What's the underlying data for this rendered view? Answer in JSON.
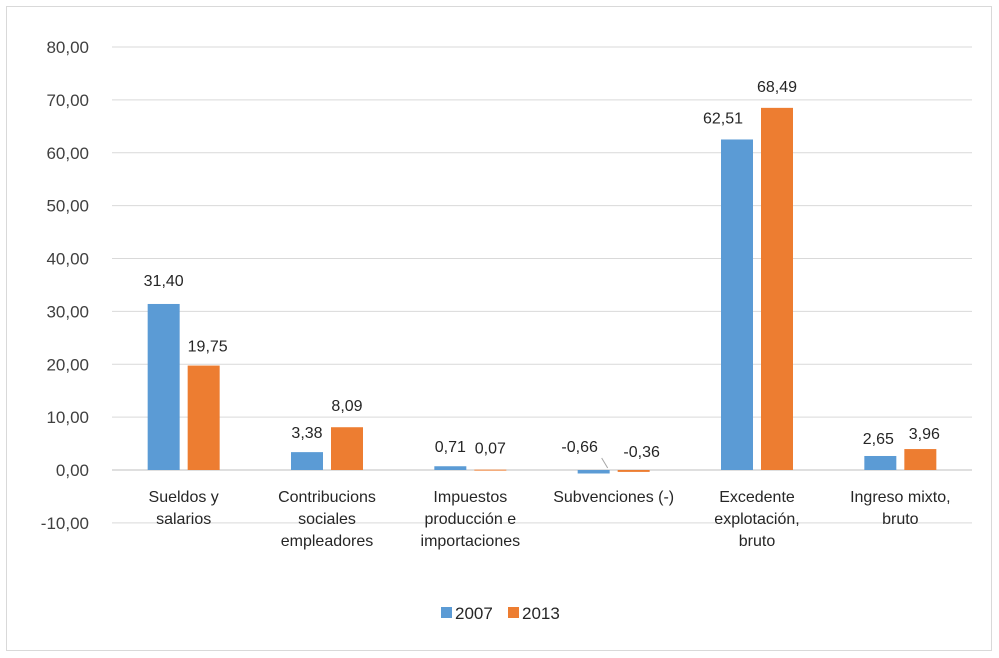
{
  "chart_data": {
    "type": "bar",
    "categories": [
      [
        "Sueldos y",
        "salarios"
      ],
      [
        "Contribucions",
        "sociales",
        "empleadores"
      ],
      [
        "Impuestos",
        "producción e",
        "importaciones"
      ],
      [
        "Subvenciones (-)"
      ],
      [
        "Excedente",
        "explotación,",
        "bruto"
      ],
      [
        "Ingreso mixto,",
        "bruto"
      ]
    ],
    "series": [
      {
        "name": "2007",
        "values": [
          31.4,
          3.38,
          0.71,
          -0.66,
          62.51,
          2.65
        ],
        "labels": [
          "31,40",
          "3,38",
          "0,71",
          "-0,66",
          "62,51",
          "2,65"
        ]
      },
      {
        "name": "2013",
        "values": [
          19.75,
          8.09,
          0.07,
          -0.36,
          68.49,
          3.96
        ],
        "labels": [
          "19,75",
          "8,09",
          "0,07",
          "-0,36",
          "68,49",
          "3,96"
        ]
      }
    ],
    "colors": [
      "#5b9bd5",
      "#ed7d31"
    ],
    "ylim": [
      -10,
      80
    ],
    "yticks": [
      80,
      70,
      60,
      50,
      40,
      30,
      20,
      10,
      0,
      -10
    ],
    "ytick_labels": [
      "80,00",
      "70,00",
      "60,00",
      "50,00",
      "40,00",
      "30,00",
      "20,00",
      "10,00",
      "0,00",
      "-10,00"
    ],
    "grid": true,
    "legend": "bottom-center",
    "title": "",
    "xlabel": "",
    "ylabel": ""
  }
}
